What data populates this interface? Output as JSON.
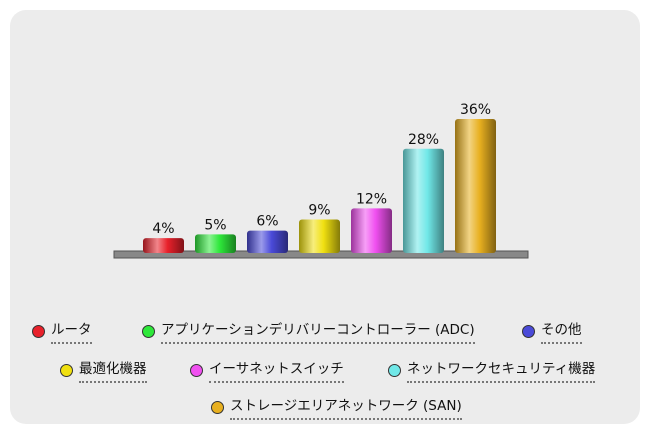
{
  "chart_data": {
    "type": "bar",
    "title": "",
    "xlabel": "",
    "ylabel": "",
    "ylim": [
      0,
      36
    ],
    "grid": false,
    "legend_position": "bottom",
    "categories": [
      "ルータ",
      "アプリケーションデリバリーコントローラー (ADC)",
      "その他",
      "最適化機器",
      "イーサネットスイッチ",
      "ネットワークセキュリティ機器",
      "ストレージエリアネットワーク (SAN)"
    ],
    "values": [
      4,
      5,
      6,
      9,
      12,
      28,
      36
    ],
    "data_labels": [
      "4%",
      "5%",
      "6%",
      "9%",
      "12%",
      "28%",
      "36%"
    ],
    "colors": [
      "#e8212b",
      "#2ee83a",
      "#4a4ad8",
      "#f0e010",
      "#f050f0",
      "#70e8e8",
      "#e8b020"
    ]
  }
}
